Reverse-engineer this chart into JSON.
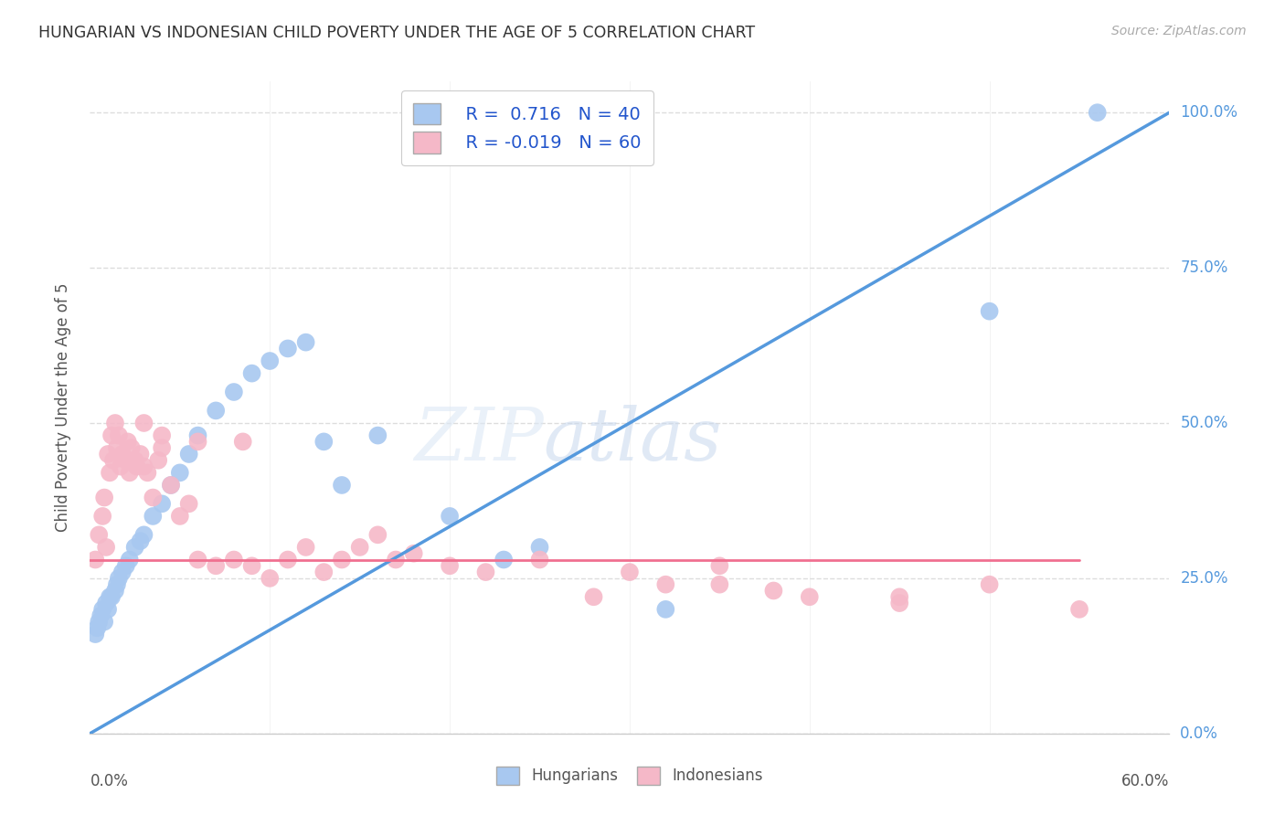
{
  "title": "HUNGARIAN VS INDONESIAN CHILD POVERTY UNDER THE AGE OF 5 CORRELATION CHART",
  "source": "Source: ZipAtlas.com",
  "ylabel": "Child Poverty Under the Age of 5",
  "ytick_labels": [
    "0.0%",
    "25.0%",
    "50.0%",
    "75.0%",
    "100.0%"
  ],
  "ytick_values": [
    0,
    25,
    50,
    75,
    100
  ],
  "xlim": [
    0,
    60
  ],
  "ylim": [
    0,
    105
  ],
  "legend_r_values": [
    "R =  0.716",
    "R = -0.019"
  ],
  "legend_n_values": [
    "N = 40",
    "N = 60"
  ],
  "hungarian_color": "#a8c8f0",
  "indonesian_color": "#f5b8c8",
  "hungarian_line_color": "#5599dd",
  "indonesian_line_color": "#f07090",
  "watermark_zip": "ZIP",
  "watermark_atlas": "atlas",
  "background_color": "#ffffff",
  "grid_color": "#dddddd",
  "hungarian_x": [
    0.3,
    0.4,
    0.5,
    0.6,
    0.7,
    0.8,
    0.9,
    1.0,
    1.1,
    1.2,
    1.4,
    1.5,
    1.6,
    1.8,
    2.0,
    2.2,
    2.5,
    2.8,
    3.0,
    3.5,
    4.0,
    4.5,
    5.0,
    5.5,
    6.0,
    7.0,
    8.0,
    9.0,
    10.0,
    11.0,
    12.0,
    14.0,
    16.0,
    20.0,
    25.0,
    32.0,
    13.0,
    23.0,
    50.0,
    56.0
  ],
  "hungarian_y": [
    16,
    17,
    18,
    19,
    20,
    18,
    21,
    20,
    22,
    22,
    23,
    24,
    25,
    26,
    27,
    28,
    30,
    31,
    32,
    35,
    37,
    40,
    42,
    45,
    48,
    52,
    55,
    58,
    60,
    62,
    63,
    40,
    48,
    35,
    30,
    20,
    47,
    28,
    68,
    100
  ],
  "indonesian_x": [
    0.3,
    0.5,
    0.7,
    0.8,
    0.9,
    1.0,
    1.1,
    1.2,
    1.3,
    1.4,
    1.5,
    1.6,
    1.7,
    1.8,
    2.0,
    2.1,
    2.2,
    2.3,
    2.5,
    2.6,
    2.8,
    3.0,
    3.2,
    3.5,
    3.8,
    4.0,
    4.5,
    5.0,
    5.5,
    6.0,
    7.0,
    8.0,
    9.0,
    10.0,
    11.0,
    12.0,
    13.0,
    14.0,
    15.0,
    16.0,
    17.0,
    18.0,
    20.0,
    22.0,
    25.0,
    28.0,
    32.0,
    35.0,
    40.0,
    45.0,
    50.0,
    55.0,
    3.0,
    4.0,
    6.0,
    8.5,
    30.0,
    35.0,
    38.0,
    45.0
  ],
  "indonesian_y": [
    28,
    32,
    35,
    38,
    30,
    45,
    42,
    48,
    44,
    50,
    46,
    48,
    43,
    45,
    44,
    47,
    42,
    46,
    44,
    43,
    45,
    43,
    42,
    38,
    44,
    46,
    40,
    35,
    37,
    28,
    27,
    28,
    27,
    25,
    28,
    30,
    26,
    28,
    30,
    32,
    28,
    29,
    27,
    26,
    28,
    22,
    24,
    27,
    22,
    21,
    24,
    20,
    50,
    48,
    47,
    47,
    26,
    24,
    23,
    22
  ],
  "hung_line_x": [
    0,
    60
  ],
  "hung_line_y": [
    0,
    100
  ],
  "indo_line_x": [
    0,
    55
  ],
  "indo_line_y": [
    28,
    28
  ]
}
